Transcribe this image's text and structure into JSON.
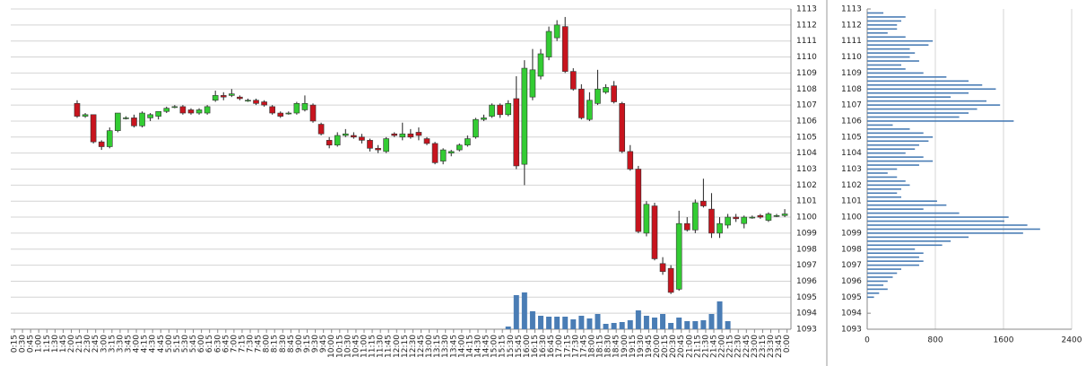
{
  "chart_data": [
    {
      "type": "candlestick",
      "categories": [
        "0:15",
        "0:30",
        "0:45",
        "1:00",
        "1:15",
        "1:30",
        "1:45",
        "2:00",
        "2:15",
        "2:30",
        "2:45",
        "3:00",
        "3:15",
        "3:30",
        "3:45",
        "4:00",
        "4:15",
        "4:30",
        "4:45",
        "5:00",
        "5:15",
        "5:30",
        "5:45",
        "6:00",
        "6:15",
        "6:30",
        "6:45",
        "7:00",
        "7:15",
        "7:30",
        "7:45",
        "8:00",
        "8:15",
        "8:30",
        "8:45",
        "9:00",
        "9:15",
        "9:30",
        "9:45",
        "10:00",
        "10:15",
        "10:30",
        "10:45",
        "11:00",
        "11:15",
        "11:30",
        "11:45",
        "12:00",
        "12:15",
        "12:30",
        "12:45",
        "13:00",
        "13:15",
        "13:30",
        "13:45",
        "14:00",
        "14:15",
        "14:30",
        "14:45",
        "15:00",
        "15:15",
        "15:30",
        "15:45",
        "16:00",
        "16:15",
        "16:30",
        "16:45",
        "17:00",
        "17:15",
        "17:30",
        "17:45",
        "18:00",
        "18:15",
        "18:30",
        "18:45",
        "19:00",
        "19:15",
        "19:30",
        "19:45",
        "20:00",
        "20:15",
        "20:30",
        "20:45",
        "21:00",
        "21:15",
        "21:30",
        "21:45",
        "22:00",
        "22:15",
        "22:30",
        "22:45",
        "23:00",
        "23:15",
        "23:30",
        "23:45",
        "0:00"
      ],
      "open": [
        null,
        null,
        null,
        null,
        null,
        null,
        null,
        1107.1,
        1106.3,
        1106.4,
        1104.7,
        1104.4,
        1105.4,
        1106.2,
        1106.2,
        1105.7,
        1106.2,
        1106.3,
        1106.6,
        1106.9,
        1106.9,
        1106.7,
        1106.5,
        1106.5,
        1107.3,
        1107.6,
        1107.6,
        1107.5,
        1107.3,
        1107.3,
        1107.2,
        1106.9,
        1106.5,
        1106.5,
        1106.5,
        1106.7,
        1107.0,
        1105.8,
        1104.8,
        1104.5,
        1105.1,
        1105.1,
        1105.0,
        1104.8,
        1104.3,
        1104.1,
        1105.2,
        1105.0,
        1105.2,
        1105.3,
        1104.9,
        1104.6,
        1103.5,
        1104.0,
        1104.2,
        1104.5,
        1105.0,
        1106.1,
        1106.3,
        1107.0,
        1106.4,
        1107.4,
        1103.3,
        1107.5,
        1108.8,
        1110.0,
        1111.2,
        1111.9,
        1109.1,
        1108.0,
        1106.1,
        1107.1,
        1107.8,
        1108.2,
        1107.1,
        1104.1,
        1103.0,
        1099.0,
        1100.7,
        1097.1,
        1096.8,
        1095.5,
        1099.6,
        1099.2,
        1101.0,
        1100.5,
        1099.0,
        1099.5,
        1100.0,
        1099.6,
        1100.0,
        1100.1,
        1099.8,
        1100.1,
        1100.1,
        null
      ],
      "high": [
        null,
        null,
        null,
        null,
        null,
        null,
        null,
        1107.3,
        1106.5,
        1106.4,
        1104.8,
        1105.6,
        1106.5,
        1106.3,
        1106.4,
        1106.6,
        1106.5,
        1106.6,
        1106.9,
        1107.0,
        1107.0,
        1106.8,
        1106.8,
        1107.0,
        1107.9,
        1107.8,
        1108.0,
        1107.6,
        1107.4,
        1107.4,
        1107.3,
        1107.0,
        1106.6,
        1106.6,
        1107.2,
        1107.6,
        1107.1,
        1105.9,
        1105.0,
        1105.3,
        1105.5,
        1105.3,
        1105.2,
        1104.9,
        1104.5,
        1105.0,
        1105.3,
        1105.9,
        1105.5,
        1105.6,
        1105.0,
        1104.7,
        1104.3,
        1104.2,
        1104.6,
        1105.1,
        1106.2,
        1106.4,
        1107.1,
        1107.1,
        1107.3,
        1108.8,
        1109.8,
        1110.5,
        1110.5,
        1111.9,
        1112.3,
        1112.5,
        1109.3,
        1108.3,
        1107.8,
        1109.2,
        1108.3,
        1108.5,
        1107.2,
        1104.5,
        1103.2,
        1101.0,
        1100.9,
        1097.5,
        1097.0,
        1100.4,
        1100.0,
        1101.1,
        1102.4,
        1101.5,
        1100.0,
        1100.2,
        1100.2,
        1100.1,
        1100.1,
        1100.2,
        1100.3,
        1100.2,
        1100.5,
        null
      ],
      "low": [
        null,
        null,
        null,
        null,
        null,
        null,
        null,
        1106.2,
        1106.2,
        1104.6,
        1104.2,
        1104.3,
        1105.3,
        1106.1,
        1105.6,
        1105.6,
        1106.0,
        1106.1,
        1106.5,
        1106.8,
        1106.4,
        1106.4,
        1106.4,
        1106.4,
        1107.2,
        1107.3,
        1107.5,
        1107.3,
        1107.2,
        1107.0,
        1106.9,
        1106.4,
        1106.2,
        1106.4,
        1106.4,
        1106.6,
        1105.9,
        1105.1,
        1104.3,
        1104.4,
        1105.0,
        1104.9,
        1104.6,
        1104.1,
        1104.0,
        1104.0,
        1105.0,
        1104.8,
        1104.9,
        1104.8,
        1104.5,
        1103.3,
        1103.3,
        1103.8,
        1104.1,
        1104.4,
        1104.9,
        1106.0,
        1106.2,
        1106.2,
        1106.3,
        1103.0,
        1102.0,
        1107.3,
        1108.6,
        1109.8,
        1111.0,
        1109.0,
        1107.9,
        1106.1,
        1106.0,
        1107.0,
        1107.7,
        1107.1,
        1104.0,
        1102.9,
        1099.0,
        1098.8,
        1097.3,
        1096.4,
        1095.2,
        1095.4,
        1099.1,
        1099.0,
        1100.6,
        1098.7,
        1098.7,
        1099.3,
        1099.7,
        1099.3,
        1099.9,
        1099.9,
        1099.7,
        1100.0,
        1100.0,
        null
      ],
      "close": [
        null,
        null,
        null,
        null,
        null,
        null,
        null,
        1106.3,
        1106.4,
        1104.7,
        1104.4,
        1105.4,
        1106.5,
        1106.2,
        1105.7,
        1106.5,
        1106.4,
        1106.6,
        1106.8,
        1106.9,
        1106.5,
        1106.5,
        1106.7,
        1106.9,
        1107.6,
        1107.5,
        1107.7,
        1107.4,
        1107.3,
        1107.1,
        1107.0,
        1106.5,
        1106.3,
        1106.5,
        1107.1,
        1107.1,
        1106.0,
        1105.2,
        1104.5,
        1105.1,
        1105.2,
        1105.0,
        1104.8,
        1104.3,
        1104.2,
        1104.9,
        1105.1,
        1105.2,
        1105.0,
        1105.1,
        1104.6,
        1103.4,
        1104.2,
        1104.1,
        1104.5,
        1104.9,
        1106.1,
        1106.2,
        1107.0,
        1106.4,
        1107.1,
        1103.2,
        1109.3,
        1109.2,
        1110.2,
        1111.6,
        1112.0,
        1109.1,
        1108.0,
        1106.2,
        1107.3,
        1108.0,
        1108.1,
        1107.2,
        1104.1,
        1103.0,
        1099.1,
        1100.8,
        1097.4,
        1096.6,
        1095.3,
        1099.6,
        1099.2,
        1100.9,
        1100.7,
        1099.0,
        1099.6,
        1100.0,
        1099.9,
        1100.0,
        1100.0,
        1100.0,
        1100.2,
        1100.1,
        1100.2,
        null
      ],
      "volume": [
        null,
        null,
        null,
        null,
        null,
        null,
        null,
        null,
        null,
        null,
        null,
        null,
        null,
        null,
        null,
        null,
        null,
        null,
        null,
        null,
        null,
        null,
        null,
        null,
        null,
        null,
        null,
        null,
        null,
        null,
        null,
        null,
        null,
        null,
        null,
        null,
        null,
        null,
        null,
        null,
        null,
        null,
        null,
        null,
        null,
        null,
        null,
        null,
        null,
        null,
        null,
        null,
        null,
        null,
        null,
        null,
        null,
        null,
        null,
        null,
        30,
        380,
        410,
        200,
        150,
        140,
        140,
        140,
        110,
        150,
        120,
        170,
        60,
        70,
        80,
        100,
        210,
        150,
        130,
        170,
        70,
        130,
        90,
        90,
        100,
        170,
        310,
        90,
        null,
        null,
        null,
        null,
        null,
        null,
        null,
        null
      ],
      "up_color": "#33cc33",
      "down_color": "#c8141e",
      "volume_color": "#4a7db5",
      "ylim": [
        1093,
        1113
      ],
      "yticks": [
        1093,
        1094,
        1095,
        1096,
        1097,
        1098,
        1099,
        1100,
        1101,
        1102,
        1103,
        1104,
        1105,
        1106,
        1107,
        1108,
        1109,
        1110,
        1111,
        1112,
        1113
      ],
      "grid": true
    },
    {
      "type": "barh",
      "y": [
        1112.75,
        1112.5,
        1112.25,
        1112,
        1111.75,
        1111.5,
        1111.25,
        1111,
        1110.75,
        1110.5,
        1110.25,
        1110,
        1109.75,
        1109.5,
        1109.25,
        1109,
        1108.75,
        1108.5,
        1108.25,
        1108,
        1107.75,
        1107.5,
        1107.25,
        1107,
        1106.75,
        1106.5,
        1106.25,
        1106,
        1105.75,
        1105.5,
        1105.25,
        1105,
        1104.75,
        1104.5,
        1104.25,
        1104,
        1103.75,
        1103.5,
        1103.25,
        1103,
        1102.75,
        1102.5,
        1102.25,
        1102,
        1101.75,
        1101.5,
        1101.25,
        1101,
        1100.75,
        1100.5,
        1100.25,
        1100,
        1099.75,
        1099.5,
        1099.25,
        1099,
        1098.75,
        1098.5,
        1098.25,
        1098,
        1097.75,
        1097.5,
        1097.25,
        1097,
        1096.75,
        1096.5,
        1096.25,
        1096,
        1095.75,
        1095.5,
        1095.25,
        1095
      ],
      "values": [
        190,
        450,
        400,
        350,
        350,
        240,
        450,
        770,
        720,
        500,
        560,
        500,
        610,
        400,
        450,
        660,
        930,
        1190,
        1350,
        1510,
        1190,
        980,
        1400,
        1560,
        1290,
        1190,
        1080,
        1720,
        300,
        500,
        660,
        770,
        720,
        610,
        560,
        450,
        660,
        770,
        610,
        350,
        240,
        350,
        450,
        500,
        400,
        350,
        400,
        820,
        930,
        660,
        1080,
        1660,
        1610,
        1880,
        2030,
        1830,
        1190,
        980,
        880,
        560,
        660,
        610,
        660,
        610,
        400,
        350,
        300,
        240,
        190,
        240,
        140,
        80
      ],
      "color": "#4a7db5",
      "xlim": [
        0,
        2400
      ],
      "xticks": [
        0,
        800,
        1600,
        2400
      ],
      "ylim": [
        1093,
        1113
      ],
      "yticks": [
        1093,
        1094,
        1095,
        1096,
        1097,
        1098,
        1099,
        1100,
        1101,
        1102,
        1103,
        1104,
        1105,
        1106,
        1107,
        1108,
        1109,
        1110,
        1111,
        1112,
        1113
      ],
      "grid": true
    }
  ]
}
